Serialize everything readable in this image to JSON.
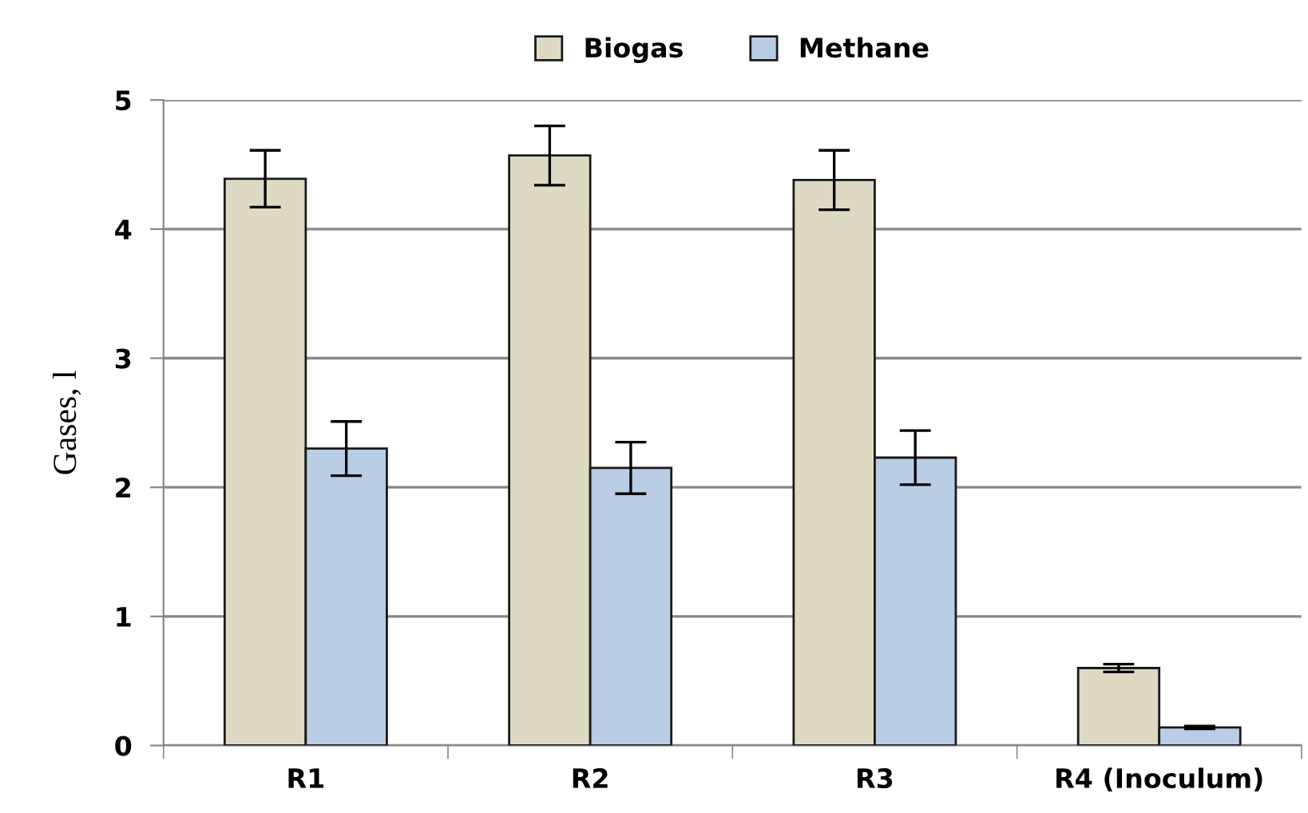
{
  "chart_data": {
    "type": "bar",
    "ylabel": "Gases, l",
    "categories": [
      "R1",
      "R2",
      "R3",
      "R4 (Inoculum)"
    ],
    "series": [
      {
        "name": "Biogas",
        "color": "#ddd9c3",
        "values": [
          4.39,
          4.57,
          4.38,
          0.6
        ],
        "errors": [
          0.22,
          0.23,
          0.23,
          0.03
        ]
      },
      {
        "name": "Methane",
        "color": "#b9cde5",
        "values": [
          2.3,
          2.15,
          2.23,
          0.14
        ],
        "errors": [
          0.21,
          0.2,
          0.21,
          0.01
        ]
      }
    ],
    "ylim": [
      0,
      5
    ],
    "yticks": [
      0,
      1,
      2,
      3,
      4,
      5
    ],
    "grid": "y",
    "legend": "top"
  }
}
